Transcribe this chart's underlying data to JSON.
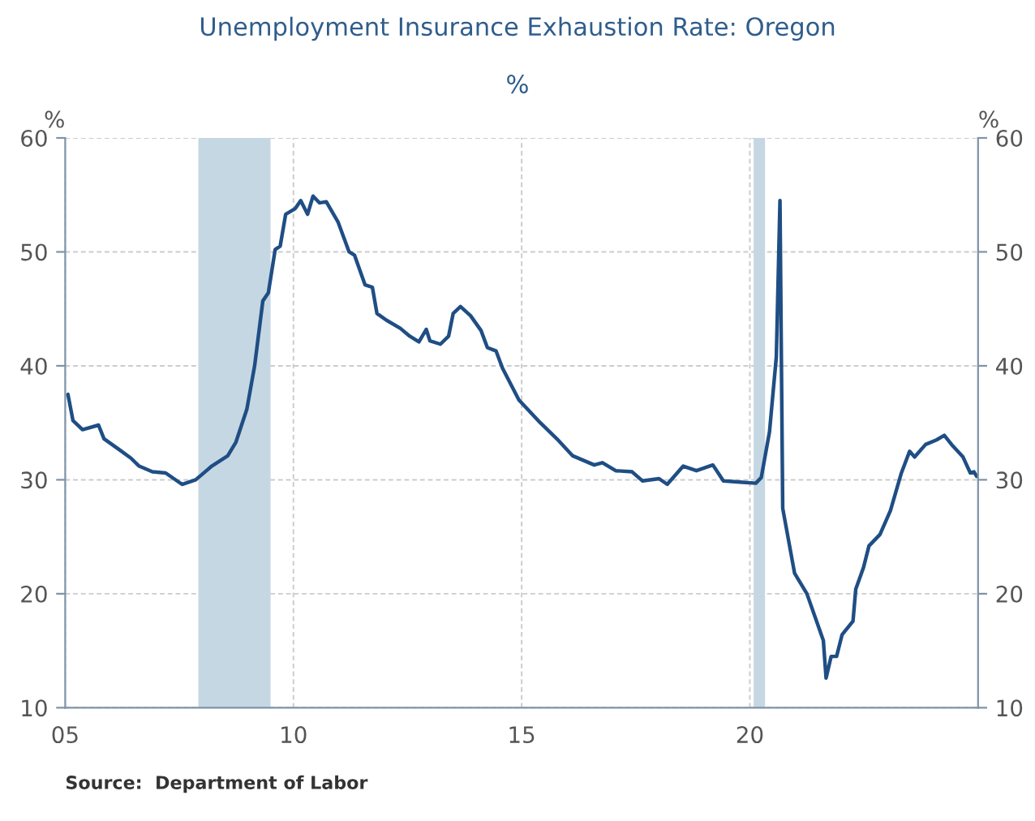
{
  "chart_data": {
    "type": "line",
    "title": "Unemployment Insurance Exhaustion Rate: Oregon",
    "subtitle": "%",
    "ylabel": "%",
    "y2label": "%",
    "annotations": [
      "Source:  Department of Labor"
    ],
    "series": [
      {
        "color": "#1f4e84",
        "x": [
          2005.06,
          2005.17,
          2005.38,
          2005.73,
          2005.85,
          2006.2,
          2006.44,
          2006.62,
          2006.91,
          2007.2,
          2007.56,
          2007.86,
          2008.21,
          2008.56,
          2008.74,
          2008.98,
          2009.15,
          2009.33,
          2009.45,
          2009.6,
          2009.71,
          2009.83,
          2010.04,
          2010.16,
          2010.31,
          2010.43,
          2010.57,
          2010.72,
          2010.98,
          2011.22,
          2011.34,
          2011.57,
          2011.73,
          2011.83,
          2012.04,
          2012.34,
          2012.55,
          2012.75,
          2012.91,
          2012.99,
          2013.22,
          2013.4,
          2013.5,
          2013.66,
          2013.88,
          2014.11,
          2014.25,
          2014.44,
          2014.58,
          2014.94,
          2015.41,
          2015.77,
          2016.12,
          2016.59,
          2016.77,
          2017.06,
          2017.42,
          2017.65,
          2018.01,
          2018.19,
          2018.54,
          2018.83,
          2019.19,
          2019.42,
          2019.78,
          2020.13,
          2020.25,
          2020.43,
          2020.58,
          2020.66,
          2020.72,
          2020.98,
          2021.25,
          2021.61,
          2021.67,
          2021.78,
          2021.9,
          2022.02,
          2022.26,
          2022.32,
          2022.49,
          2022.61,
          2022.85,
          2023.08,
          2023.32,
          2023.5,
          2023.61,
          2023.85,
          2024.09,
          2024.26,
          2024.44,
          2024.67,
          2024.83,
          2024.91,
          2024.97
        ],
        "values": [
          37.5,
          35.2,
          34.4,
          34.8,
          33.6,
          32.6,
          31.9,
          31.2,
          30.7,
          30.6,
          29.6,
          30.0,
          31.2,
          32.1,
          33.3,
          36.2,
          40.0,
          45.7,
          46.4,
          50.2,
          50.5,
          53.3,
          53.8,
          54.5,
          53.3,
          54.9,
          54.3,
          54.4,
          52.6,
          50.0,
          49.7,
          47.1,
          46.9,
          44.6,
          44.0,
          43.3,
          42.6,
          42.1,
          43.2,
          42.2,
          41.9,
          42.6,
          44.6,
          45.2,
          44.4,
          43.1,
          41.6,
          41.3,
          39.8,
          37.0,
          35.0,
          33.6,
          32.1,
          31.3,
          31.5,
          30.8,
          30.7,
          29.9,
          30.1,
          29.6,
          31.2,
          30.8,
          31.3,
          29.9,
          29.8,
          29.7,
          30.2,
          34.2,
          40.8,
          54.5,
          27.5,
          21.8,
          20.0,
          15.9,
          12.6,
          14.5,
          14.5,
          16.4,
          17.6,
          20.4,
          22.3,
          24.2,
          25.2,
          27.3,
          30.6,
          32.5,
          32.0,
          33.1,
          33.5,
          33.9,
          33.0,
          32.0,
          30.6,
          30.7,
          30.3
        ]
      }
    ],
    "bands": [
      {
        "axis": "x",
        "from": 2007.917,
        "to": 2009.5,
        "color": "#c5d7e2"
      },
      {
        "axis": "x",
        "from": 2020.083,
        "to": 2020.333,
        "color": "#c5d7e2"
      }
    ],
    "xlim": [
      2005,
      2025
    ],
    "xticks": [
      {
        "value": 2005,
        "label": "05"
      },
      {
        "value": 2010,
        "label": "10"
      },
      {
        "value": 2015,
        "label": "15"
      },
      {
        "value": 2020,
        "label": "20"
      }
    ],
    "ylim": [
      10,
      60
    ],
    "yticks": [
      10,
      20,
      30,
      40,
      50,
      60
    ],
    "y2lim": [
      10,
      60
    ],
    "y2ticks": [
      10,
      20,
      30,
      40,
      50,
      60
    ],
    "grid": true,
    "legend": false,
    "line_style": "solid",
    "marker": "none"
  }
}
